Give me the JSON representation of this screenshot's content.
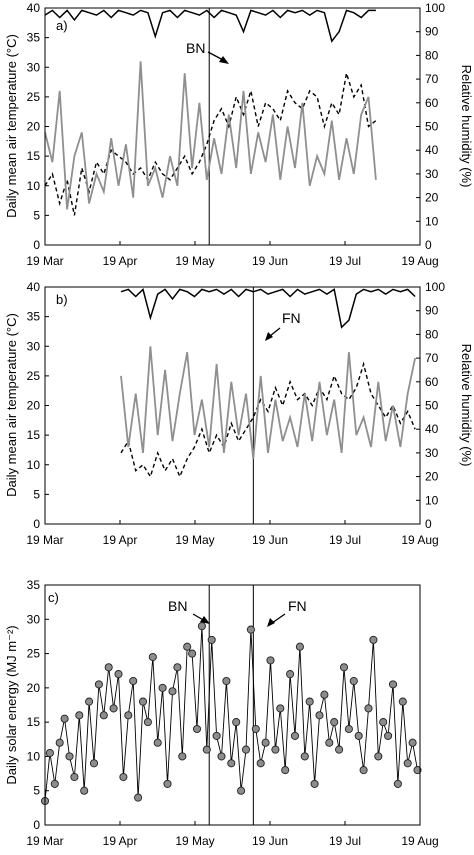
{
  "chart_data": [
    {
      "type": "line",
      "panel_label": "a)",
      "x_ticks": [
        "19 Mar",
        "19 Apr",
        "19 May",
        "19 Jun",
        "19 Jul",
        "19 Aug"
      ],
      "ylabel": "Daily mean air temperature (°C)",
      "y2label": "Relative humidity (%)",
      "ylim": [
        0,
        40
      ],
      "y_ticks": [
        0,
        5,
        10,
        15,
        20,
        25,
        30,
        35,
        40
      ],
      "y2lim": [
        0,
        100
      ],
      "y2_ticks": [
        0,
        10,
        20,
        30,
        40,
        50,
        60,
        70,
        80,
        90,
        100
      ],
      "xlim": [
        0,
        153
      ],
      "annotation": "BN",
      "event_day": 67,
      "grid": false,
      "series": [
        {
          "axis": "left",
          "style": "dashed",
          "x": [
            0,
            3,
            6,
            9,
            12,
            15,
            18,
            21,
            24,
            27,
            30,
            33,
            36,
            39,
            42,
            45,
            48,
            51,
            54,
            57,
            60,
            63,
            66,
            69,
            72,
            75,
            78,
            81,
            84,
            87,
            90,
            93,
            96,
            99,
            102,
            105,
            108,
            111,
            114,
            117,
            120,
            123,
            126,
            129,
            132,
            135
          ],
          "values": [
            10,
            12,
            7,
            11,
            5,
            13,
            9,
            14,
            12,
            16,
            15,
            14,
            12,
            13,
            11,
            14,
            12,
            11,
            13,
            15,
            12,
            14,
            17,
            21,
            23,
            20,
            25,
            22,
            26,
            20,
            24,
            23,
            21,
            26,
            24,
            23,
            26,
            25,
            20,
            24,
            22,
            29,
            25,
            27,
            20,
            21
          ]
        },
        {
          "axis": "left",
          "style": "gray",
          "x": [
            0,
            3,
            6,
            9,
            12,
            15,
            18,
            21,
            24,
            27,
            30,
            33,
            36,
            39,
            42,
            45,
            48,
            51,
            54,
            57,
            60,
            63,
            66,
            69,
            72,
            75,
            78,
            81,
            84,
            87,
            90,
            93,
            96,
            99,
            102,
            105,
            108,
            111,
            114,
            117,
            120,
            123,
            126,
            129,
            132,
            135
          ],
          "values": [
            19,
            14,
            26,
            6,
            15,
            19,
            7,
            12,
            9,
            18,
            10,
            17,
            8,
            31,
            10,
            13,
            8,
            15,
            10,
            29,
            13,
            24,
            11,
            18,
            12,
            22,
            13,
            26,
            12,
            19,
            14,
            22,
            11,
            20,
            13,
            24,
            10,
            15,
            12,
            21,
            11,
            18,
            12,
            22,
            25,
            11
          ]
        },
        {
          "axis": "right",
          "style": "solid",
          "x": [
            0,
            3,
            6,
            9,
            12,
            15,
            18,
            21,
            24,
            27,
            30,
            33,
            36,
            39,
            42,
            45,
            48,
            51,
            54,
            57,
            60,
            63,
            66,
            69,
            72,
            75,
            78,
            81,
            84,
            87,
            90,
            93,
            96,
            99,
            102,
            105,
            108,
            111,
            114,
            117,
            120,
            123,
            126,
            129,
            132,
            135
          ],
          "values": [
            97,
            99,
            96,
            99,
            95,
            99,
            98,
            97,
            99,
            96,
            99,
            98,
            97,
            99,
            98,
            88,
            98,
            99,
            96,
            99,
            98,
            97,
            99,
            96,
            99,
            98,
            97,
            90,
            99,
            98,
            97,
            99,
            96,
            99,
            98,
            99,
            97,
            99,
            98,
            86,
            90,
            99,
            98,
            96,
            99,
            99
          ]
        }
      ]
    },
    {
      "type": "line",
      "panel_label": "b)",
      "x_ticks": [
        "19 Mar",
        "19 Apr",
        "19 May",
        "19 Jun",
        "19 Jul",
        "19 Aug"
      ],
      "ylabel": "Daily mean air temperature (°C)",
      "y2label": "Relative humidity (%)",
      "ylim": [
        0,
        40
      ],
      "y_ticks": [
        0,
        5,
        10,
        15,
        20,
        25,
        30,
        35,
        40
      ],
      "y2lim": [
        0,
        100
      ],
      "y2_ticks": [
        0,
        10,
        20,
        30,
        40,
        50,
        60,
        70,
        80,
        90,
        100
      ],
      "xlim": [
        0,
        153
      ],
      "annotation": "FN",
      "event_day": 85,
      "grid": false,
      "series": [
        {
          "axis": "left",
          "style": "dashed",
          "x": [
            31,
            34,
            37,
            40,
            43,
            46,
            49,
            52,
            55,
            58,
            61,
            64,
            67,
            70,
            73,
            76,
            79,
            82,
            85,
            88,
            91,
            94,
            97,
            100,
            103,
            106,
            109,
            112,
            115,
            118,
            121,
            124,
            127,
            130,
            133,
            136,
            139,
            142,
            145,
            148,
            151
          ],
          "values": [
            12,
            14,
            9,
            10,
            8,
            12,
            9,
            11,
            8,
            11,
            13,
            16,
            12,
            15,
            13,
            17,
            14,
            16,
            18,
            21,
            19,
            23,
            20,
            24,
            21,
            22,
            20,
            23,
            21,
            25,
            22,
            21,
            23,
            27,
            22,
            20,
            18,
            20,
            17,
            19,
            16
          ]
        },
        {
          "axis": "left",
          "style": "gray",
          "x": [
            31,
            34,
            37,
            40,
            43,
            46,
            49,
            52,
            55,
            58,
            61,
            64,
            67,
            70,
            73,
            76,
            79,
            82,
            85,
            88,
            91,
            94,
            97,
            100,
            103,
            106,
            109,
            112,
            115,
            118,
            121,
            124,
            127,
            130,
            133,
            136,
            139,
            142,
            145,
            148,
            151
          ],
          "values": [
            25,
            13,
            22,
            12,
            30,
            15,
            26,
            14,
            22,
            29,
            15,
            21,
            13,
            27,
            12,
            24,
            15,
            22,
            11,
            25,
            12,
            21,
            14,
            18,
            13,
            22,
            14,
            24,
            15,
            21,
            12,
            29,
            15,
            18,
            13,
            24,
            14,
            20,
            13,
            22,
            28
          ]
        },
        {
          "axis": "right",
          "style": "solid",
          "x": [
            31,
            34,
            37,
            40,
            43,
            46,
            49,
            52,
            55,
            58,
            61,
            64,
            67,
            70,
            73,
            76,
            79,
            82,
            85,
            88,
            91,
            94,
            97,
            100,
            103,
            106,
            109,
            112,
            115,
            118,
            121,
            124,
            127,
            130,
            133,
            136,
            139,
            142,
            145,
            148,
            151
          ],
          "values": [
            98,
            99,
            96,
            99,
            87,
            97,
            99,
            95,
            99,
            98,
            96,
            99,
            98,
            99,
            97,
            99,
            96,
            99,
            98,
            99,
            97,
            98,
            99,
            96,
            99,
            97,
            98,
            99,
            97,
            99,
            83,
            86,
            97,
            99,
            98,
            99,
            97,
            99,
            98,
            99,
            96
          ]
        }
      ]
    },
    {
      "type": "scatter",
      "panel_label": "c)",
      "x_ticks": [
        "19 Mar",
        "19 Apr",
        "19 May",
        "19 Jun",
        "19 Jul",
        "19 Aug"
      ],
      "ylabel": "Daily solar energy (MJ m⁻²)",
      "ylim": [
        0,
        35
      ],
      "y_ticks": [
        0,
        5,
        10,
        15,
        20,
        25,
        30,
        35
      ],
      "xlim": [
        0,
        153
      ],
      "event_days": [
        67,
        85
      ],
      "annotations": [
        "BN",
        "FN"
      ],
      "grid": false,
      "series": [
        {
          "style": "gray markers with connecting line",
          "x": [
            0,
            2,
            4,
            6,
            8,
            10,
            12,
            14,
            16,
            18,
            20,
            22,
            24,
            26,
            28,
            30,
            32,
            34,
            36,
            38,
            40,
            42,
            44,
            46,
            48,
            50,
            52,
            54,
            56,
            58,
            60,
            62,
            64,
            66,
            68,
            70,
            72,
            74,
            76,
            78,
            80,
            82,
            84,
            86,
            88,
            90,
            92,
            94,
            96,
            98,
            100,
            102,
            104,
            106,
            108,
            110,
            112,
            114,
            116,
            118,
            120,
            122,
            124,
            126,
            128,
            130,
            132,
            134,
            136,
            138,
            140,
            142,
            144,
            146,
            148,
            150,
            152
          ],
          "values": [
            3.5,
            10.5,
            6,
            12,
            15.5,
            10,
            7,
            16,
            5,
            18,
            9,
            20.5,
            16,
            23,
            17,
            22,
            7,
            16,
            21,
            4,
            18,
            15,
            24.5,
            12,
            20,
            6,
            19.5,
            23,
            10,
            26,
            25,
            14,
            29,
            11,
            27,
            13,
            10,
            21,
            9,
            15,
            5,
            11,
            28.5,
            14,
            9,
            12,
            24,
            11,
            17,
            8,
            22,
            13,
            26,
            10,
            18,
            6,
            16,
            19,
            12,
            15,
            11,
            23,
            14,
            21,
            13,
            8,
            17,
            27,
            10,
            15,
            13,
            20.5,
            6,
            18,
            9,
            12,
            8
          ]
        }
      ]
    }
  ]
}
